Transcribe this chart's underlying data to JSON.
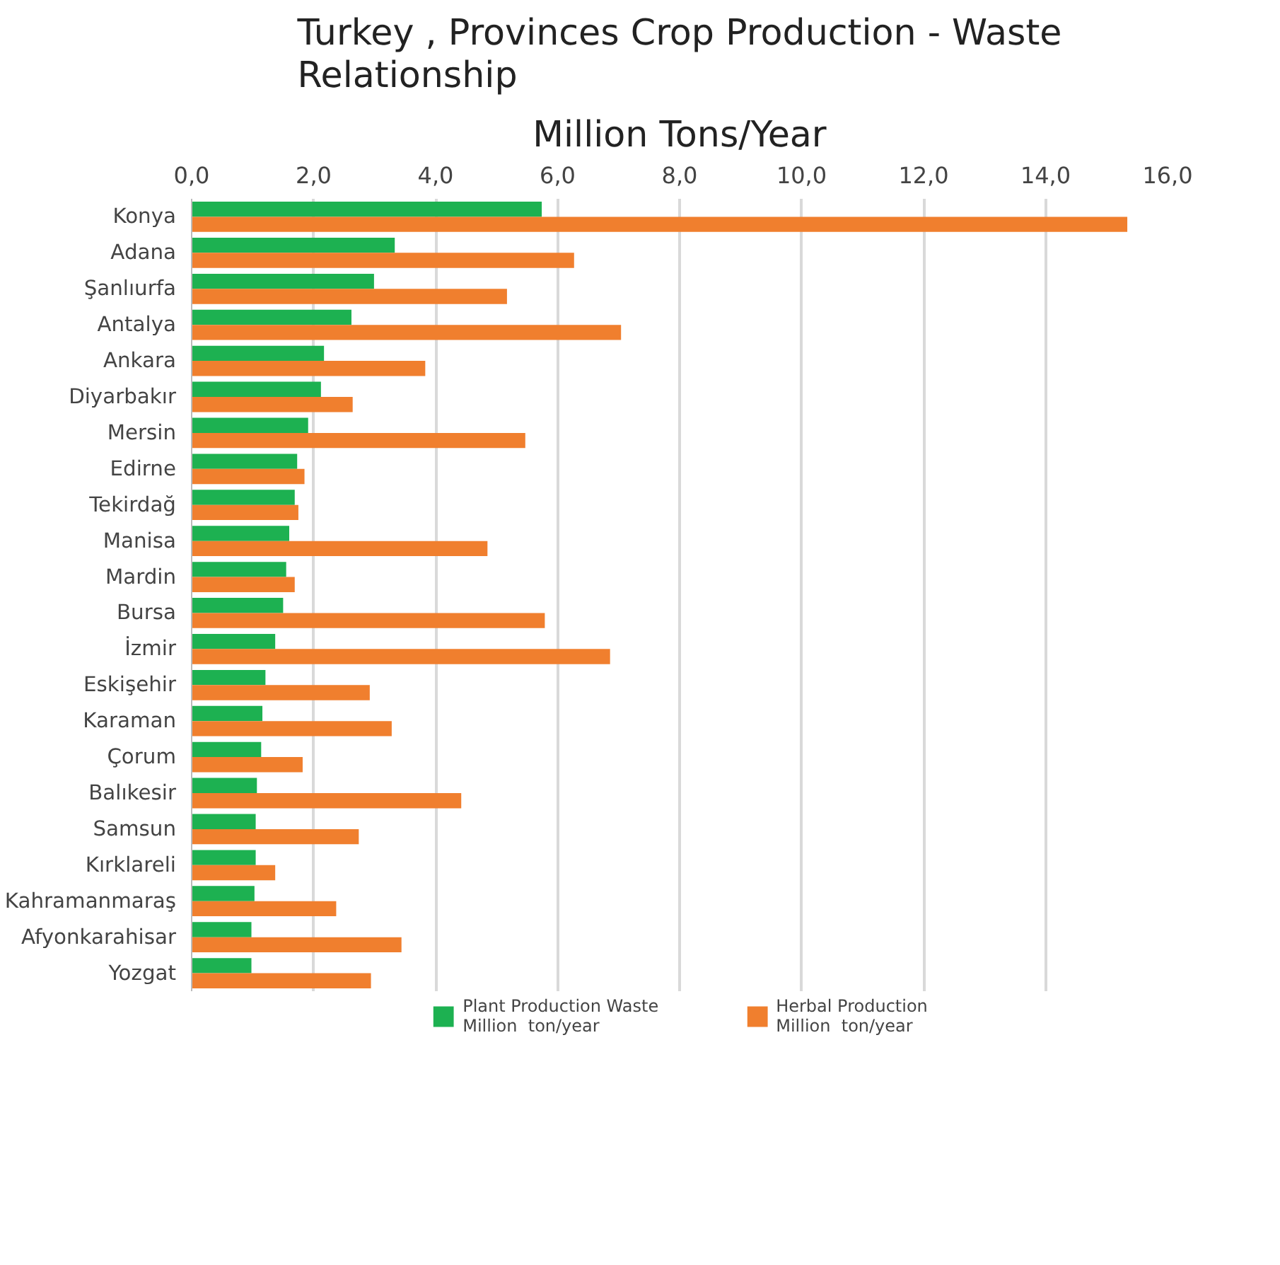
{
  "chart_data": {
    "type": "bar",
    "orientation": "horizontal",
    "title": "Turkey , Provinces Crop Production - Waste Relationship",
    "subtitle": "Million Tons/Year",
    "categories": [
      "Konya",
      "Adana",
      "Şanlıurfa",
      "Antalya",
      "Ankara",
      "Diyarbakır",
      "Mersin",
      "Edirne",
      "Tekirdağ",
      "Manisa",
      "Mardin",
      "Bursa",
      "İzmir",
      "Eskişehir",
      "Karaman",
      "Çorum",
      "Balıkesir",
      "Samsun",
      "Kırklareli",
      "Kahramanmaraş",
      "Afyonkarahisar",
      "Yozgat"
    ],
    "series": [
      {
        "name": "Plant Production Waste\nMillion  ton/year",
        "color": "#1db151",
        "values": [
          5.74,
          3.33,
          2.99,
          2.62,
          2.17,
          2.12,
          1.91,
          1.73,
          1.69,
          1.6,
          1.55,
          1.5,
          1.37,
          1.21,
          1.16,
          1.14,
          1.07,
          1.05,
          1.05,
          1.03,
          0.98,
          0.98
        ]
      },
      {
        "name": "Herbal Production\nMillion  ton/year",
        "color": "#f07f2e",
        "values": [
          15.34,
          6.27,
          5.17,
          7.04,
          3.83,
          2.64,
          5.47,
          1.85,
          1.75,
          4.85,
          1.69,
          5.79,
          6.86,
          2.92,
          3.28,
          1.82,
          4.42,
          2.74,
          1.37,
          2.37,
          3.44,
          2.94
        ]
      }
    ],
    "xlim": [
      0,
      16
    ],
    "xticks": [
      {
        "value": 0,
        "label": "0,0"
      },
      {
        "value": 2,
        "label": "2,0"
      },
      {
        "value": 4,
        "label": "4,0"
      },
      {
        "value": 6,
        "label": "6,0"
      },
      {
        "value": 8,
        "label": "8,0"
      },
      {
        "value": 10,
        "label": "10,0"
      },
      {
        "value": 12,
        "label": "12,0"
      },
      {
        "value": 14,
        "label": "14,0"
      },
      {
        "value": 16,
        "label": "16,0"
      }
    ],
    "grid": "x",
    "legend": "bottom"
  }
}
